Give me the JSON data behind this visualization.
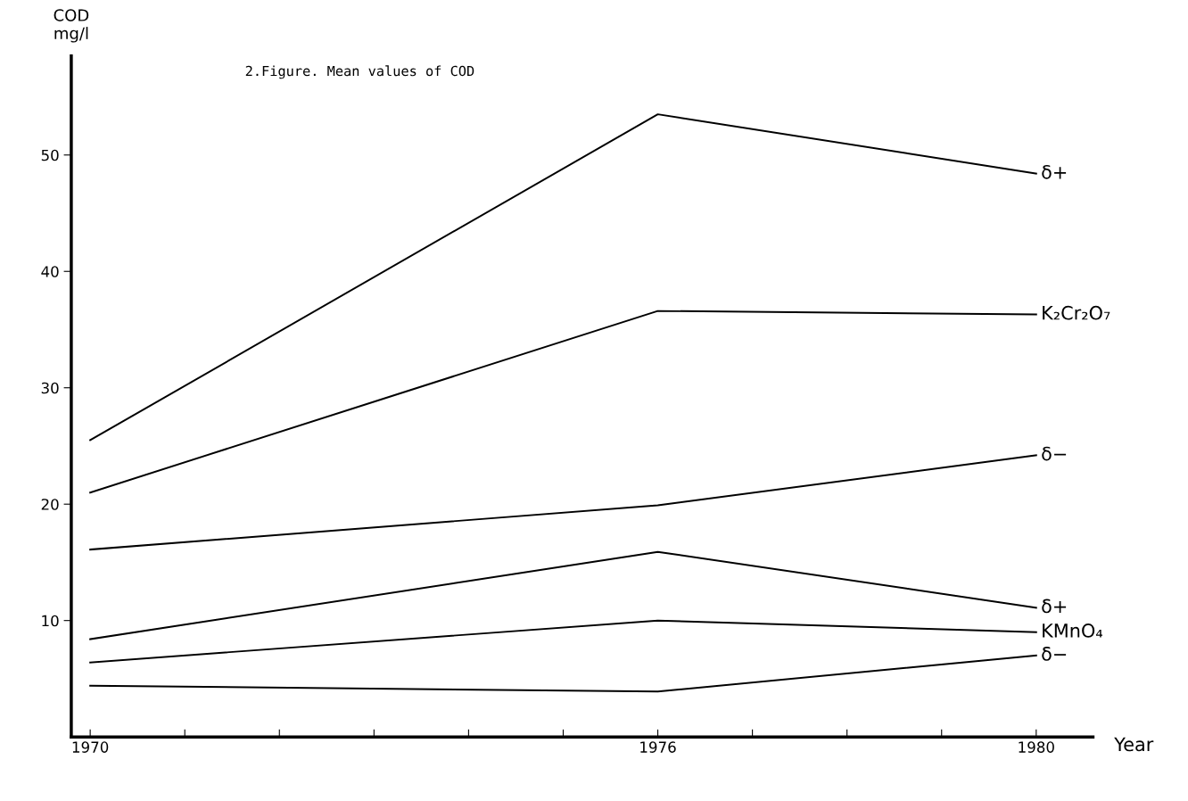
{
  "chart_data": {
    "type": "line",
    "title": "2.Figure. Mean values of COD",
    "xlabel": "Year",
    "ylabel": "COD\nmg/l",
    "x": [
      1970,
      1976,
      1980
    ],
    "series": [
      {
        "name": "δ+",
        "color": "#000000",
        "values": [
          25.5,
          53.5,
          48.4
        ]
      },
      {
        "name": "K₂Cr₂O₇",
        "color": "#000000",
        "values": [
          21.0,
          36.6,
          36.3
        ]
      },
      {
        "name": "δ−",
        "color": "#000000",
        "values": [
          16.1,
          19.9,
          24.2
        ]
      },
      {
        "name": "δ+",
        "color": "#000000",
        "values": [
          8.4,
          15.9,
          11.1
        ]
      },
      {
        "name": "KMnO₄",
        "color": "#000000",
        "values": [
          6.4,
          10.0,
          9.0
        ]
      },
      {
        "name": "δ−",
        "color": "#000000",
        "values": [
          4.4,
          3.9,
          7.0
        ]
      }
    ],
    "xlim": [
      1969.8,
      1980.6
    ],
    "ylim": [
      0,
      58.5
    ],
    "xticks": [
      1970,
      {
        "value": 1971,
        "label": null
      },
      {
        "value": 1972,
        "label": null
      },
      {
        "value": 1973,
        "label": null
      },
      {
        "value": 1974,
        "label": null
      },
      {
        "value": 1975,
        "label": null
      },
      1976,
      {
        "value": 1977,
        "label": null
      },
      {
        "value": 1978,
        "label": null
      },
      {
        "value": 1979,
        "label": null
      },
      1980
    ],
    "yticks": [
      10,
      20,
      30,
      40,
      50
    ],
    "grid": false,
    "legend": false,
    "marker": "none",
    "line_style": "solid"
  }
}
